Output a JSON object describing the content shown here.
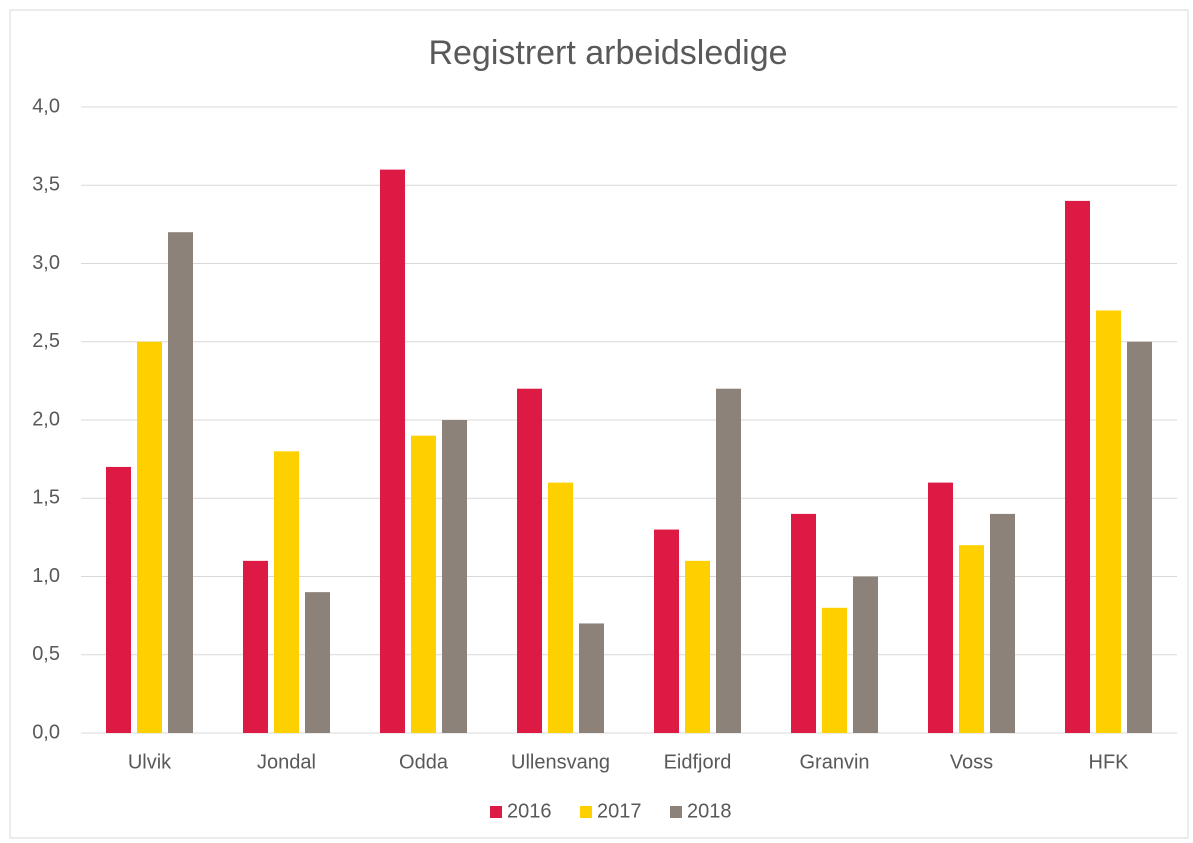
{
  "chart_data": {
    "type": "bar",
    "title": "Registrert  arbeidsledige",
    "categories": [
      "Ulvik",
      "Jondal",
      "Odda",
      "Ullensvang",
      "Eidfjord",
      "Granvin",
      "Voss",
      "HFK"
    ],
    "series": [
      {
        "name": "2016",
        "color": "#dc1a44",
        "values": [
          1.7,
          1.1,
          3.6,
          2.2,
          1.3,
          1.4,
          1.6,
          3.4
        ]
      },
      {
        "name": "2017",
        "color": "#ffd000",
        "values": [
          2.5,
          1.8,
          1.9,
          1.6,
          1.1,
          0.8,
          1.2,
          2.7
        ]
      },
      {
        "name": "2018",
        "color": "#8c8279",
        "values": [
          3.2,
          0.9,
          2.0,
          0.7,
          2.2,
          1.0,
          1.4,
          2.5
        ]
      }
    ],
    "ylim": [
      0,
      4
    ],
    "yticks": [
      {
        "value": 0,
        "label": "0,0"
      },
      {
        "value": 0.5,
        "label": "0,5"
      },
      {
        "value": 1,
        "label": "1,0"
      },
      {
        "value": 1.5,
        "label": "1,5"
      },
      {
        "value": 2,
        "label": "2,0"
      },
      {
        "value": 2.5,
        "label": "2,5"
      },
      {
        "value": 3,
        "label": "3,0"
      },
      {
        "value": 3.5,
        "label": "3,5"
      },
      {
        "value": 4,
        "label": "4,0"
      }
    ],
    "grid": true,
    "legend": "bottom"
  }
}
